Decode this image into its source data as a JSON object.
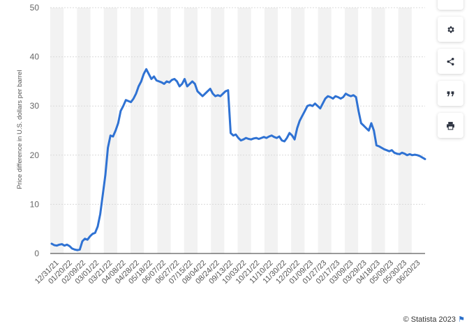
{
  "chart_data": {
    "type": "line",
    "title": "",
    "xlabel": "",
    "ylabel": "Price difference in U.S. dollars per barrel",
    "ylim": [
      0,
      50
    ],
    "yticks": [
      0,
      10,
      20,
      30,
      40,
      50
    ],
    "grid": true,
    "x_tick_labels": [
      "12/31/21",
      "01/20/22",
      "02/09/22",
      "03/01/22",
      "03/21/22",
      "04/08/22",
      "04/28/22",
      "05/18/22",
      "06/07/22",
      "06/27/22",
      "07/15/22",
      "08/04/22",
      "08/24/22",
      "09/13/22",
      "10/03/22",
      "10/21/22",
      "11/10/22",
      "11/30/22",
      "12/20/22",
      "01/09/23",
      "01/27/23",
      "02/17/23",
      "03/09/23",
      "03/29/23",
      "04/18/23",
      "05/09/23",
      "05/30/23",
      "06/20/23"
    ],
    "series": [
      {
        "color": "#2f72d3",
        "values": [
          2.0,
          1.7,
          1.6,
          1.8,
          1.9,
          1.6,
          1.8,
          1.5,
          1.0,
          0.8,
          0.7,
          0.8,
          2.5,
          3.0,
          2.8,
          3.5,
          4.0,
          4.2,
          5.5,
          8.0,
          12.0,
          16.0,
          21.5,
          24.0,
          23.8,
          25.0,
          26.5,
          29.0,
          30.0,
          31.2,
          31.0,
          30.8,
          31.5,
          32.5,
          34.0,
          35.0,
          36.5,
          37.5,
          36.5,
          35.5,
          36.0,
          35.2,
          35.0,
          34.8,
          34.5,
          35.0,
          34.8,
          35.3,
          35.5,
          35.0,
          34.0,
          34.5,
          35.5,
          34.0,
          34.5,
          35.0,
          34.5,
          33.0,
          32.5,
          32.0,
          32.5,
          33.0,
          33.5,
          32.5,
          32.0,
          32.2,
          32.0,
          32.5,
          33.0,
          33.2,
          24.5,
          24.0,
          24.2,
          23.5,
          23.0,
          23.2,
          23.5,
          23.3,
          23.2,
          23.4,
          23.5,
          23.3,
          23.5,
          23.7,
          23.5,
          23.8,
          24.0,
          23.7,
          23.5,
          23.8,
          23.0,
          22.8,
          23.5,
          24.5,
          24.0,
          23.2,
          25.5,
          27.0,
          28.0,
          29.0,
          30.0,
          30.2,
          30.0,
          30.5,
          30.0,
          29.5,
          30.5,
          31.5,
          32.0,
          31.8,
          31.5,
          32.0,
          31.8,
          31.5,
          31.8,
          32.5,
          32.2,
          32.0,
          32.2,
          31.8,
          29.0,
          26.5,
          26.0,
          25.5,
          25.0,
          26.5,
          25.0,
          22.0,
          21.8,
          21.5,
          21.2,
          21.0,
          20.8,
          21.0,
          20.5,
          20.3,
          20.2,
          20.5,
          20.3,
          20.0,
          20.2,
          20.0,
          20.1,
          20.0,
          19.8,
          19.5,
          19.2
        ]
      }
    ]
  },
  "credit": "© Statista 2023",
  "flag_icon": "flag-icon",
  "buttons": [
    {
      "icon": "gear-icon",
      "name": "settings-button"
    },
    {
      "icon": "share-icon",
      "name": "share-button"
    },
    {
      "icon": "quote-icon",
      "name": "cite-button"
    },
    {
      "icon": "print-icon",
      "name": "print-button"
    }
  ],
  "colors": {
    "line": "#2f72d3",
    "band": "#f2f2f2",
    "grid": "#d9d9d9"
  }
}
